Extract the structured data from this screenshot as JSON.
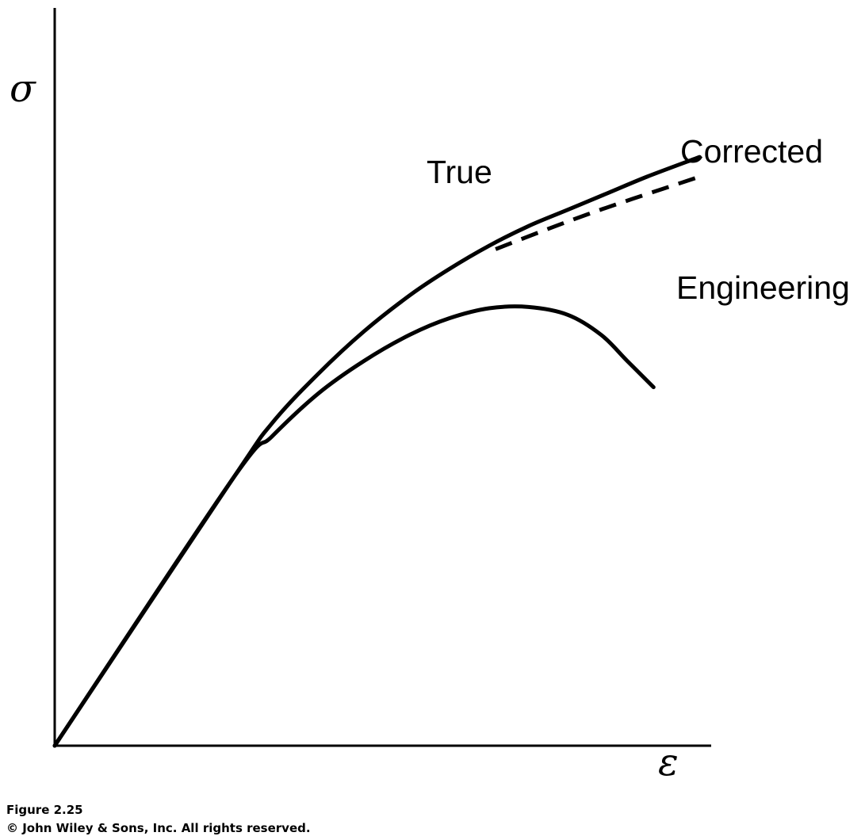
{
  "figure": {
    "number": "Figure 2.25",
    "copyright": "© John Wiley & Sons, Inc. All rights reserved."
  },
  "chart_data": {
    "type": "line",
    "title": "",
    "xlabel": "ε",
    "ylabel": "σ",
    "xlim": [
      0,
      100
    ],
    "ylim": [
      0,
      100
    ],
    "grid": false,
    "legend": "none",
    "series": [
      {
        "name": "True",
        "style": "solid",
        "color": "#000000",
        "points": [
          [
            0,
            0
          ],
          [
            27,
            40.5
          ],
          [
            33,
            49
          ],
          [
            40,
            56.5
          ],
          [
            47,
            63
          ],
          [
            54,
            68.5
          ],
          [
            60,
            72.5
          ],
          [
            66,
            76
          ],
          [
            72,
            79
          ],
          [
            78,
            81.5
          ],
          [
            84,
            84
          ],
          [
            90,
            86.5
          ],
          [
            98,
            89.5
          ]
        ]
      },
      {
        "name": "Corrected",
        "style": "dashed",
        "color": "#000000",
        "points": [
          [
            67,
            75.5
          ],
          [
            74,
            78.2
          ],
          [
            81,
            80.8
          ],
          [
            88,
            83.2
          ],
          [
            98,
            86.5
          ]
        ]
      },
      {
        "name": "Engineering",
        "style": "solid",
        "color": "#000000",
        "points": [
          [
            0,
            0
          ],
          [
            27,
            40.5
          ],
          [
            33,
            47
          ],
          [
            40,
            53.5
          ],
          [
            47,
            58.5
          ],
          [
            54,
            62.5
          ],
          [
            60,
            65
          ],
          [
            66,
            66.5
          ],
          [
            72,
            66.7
          ],
          [
            78,
            65.5
          ],
          [
            83,
            62.5
          ],
          [
            87,
            58.5
          ],
          [
            91,
            54.5
          ]
        ]
      }
    ]
  }
}
